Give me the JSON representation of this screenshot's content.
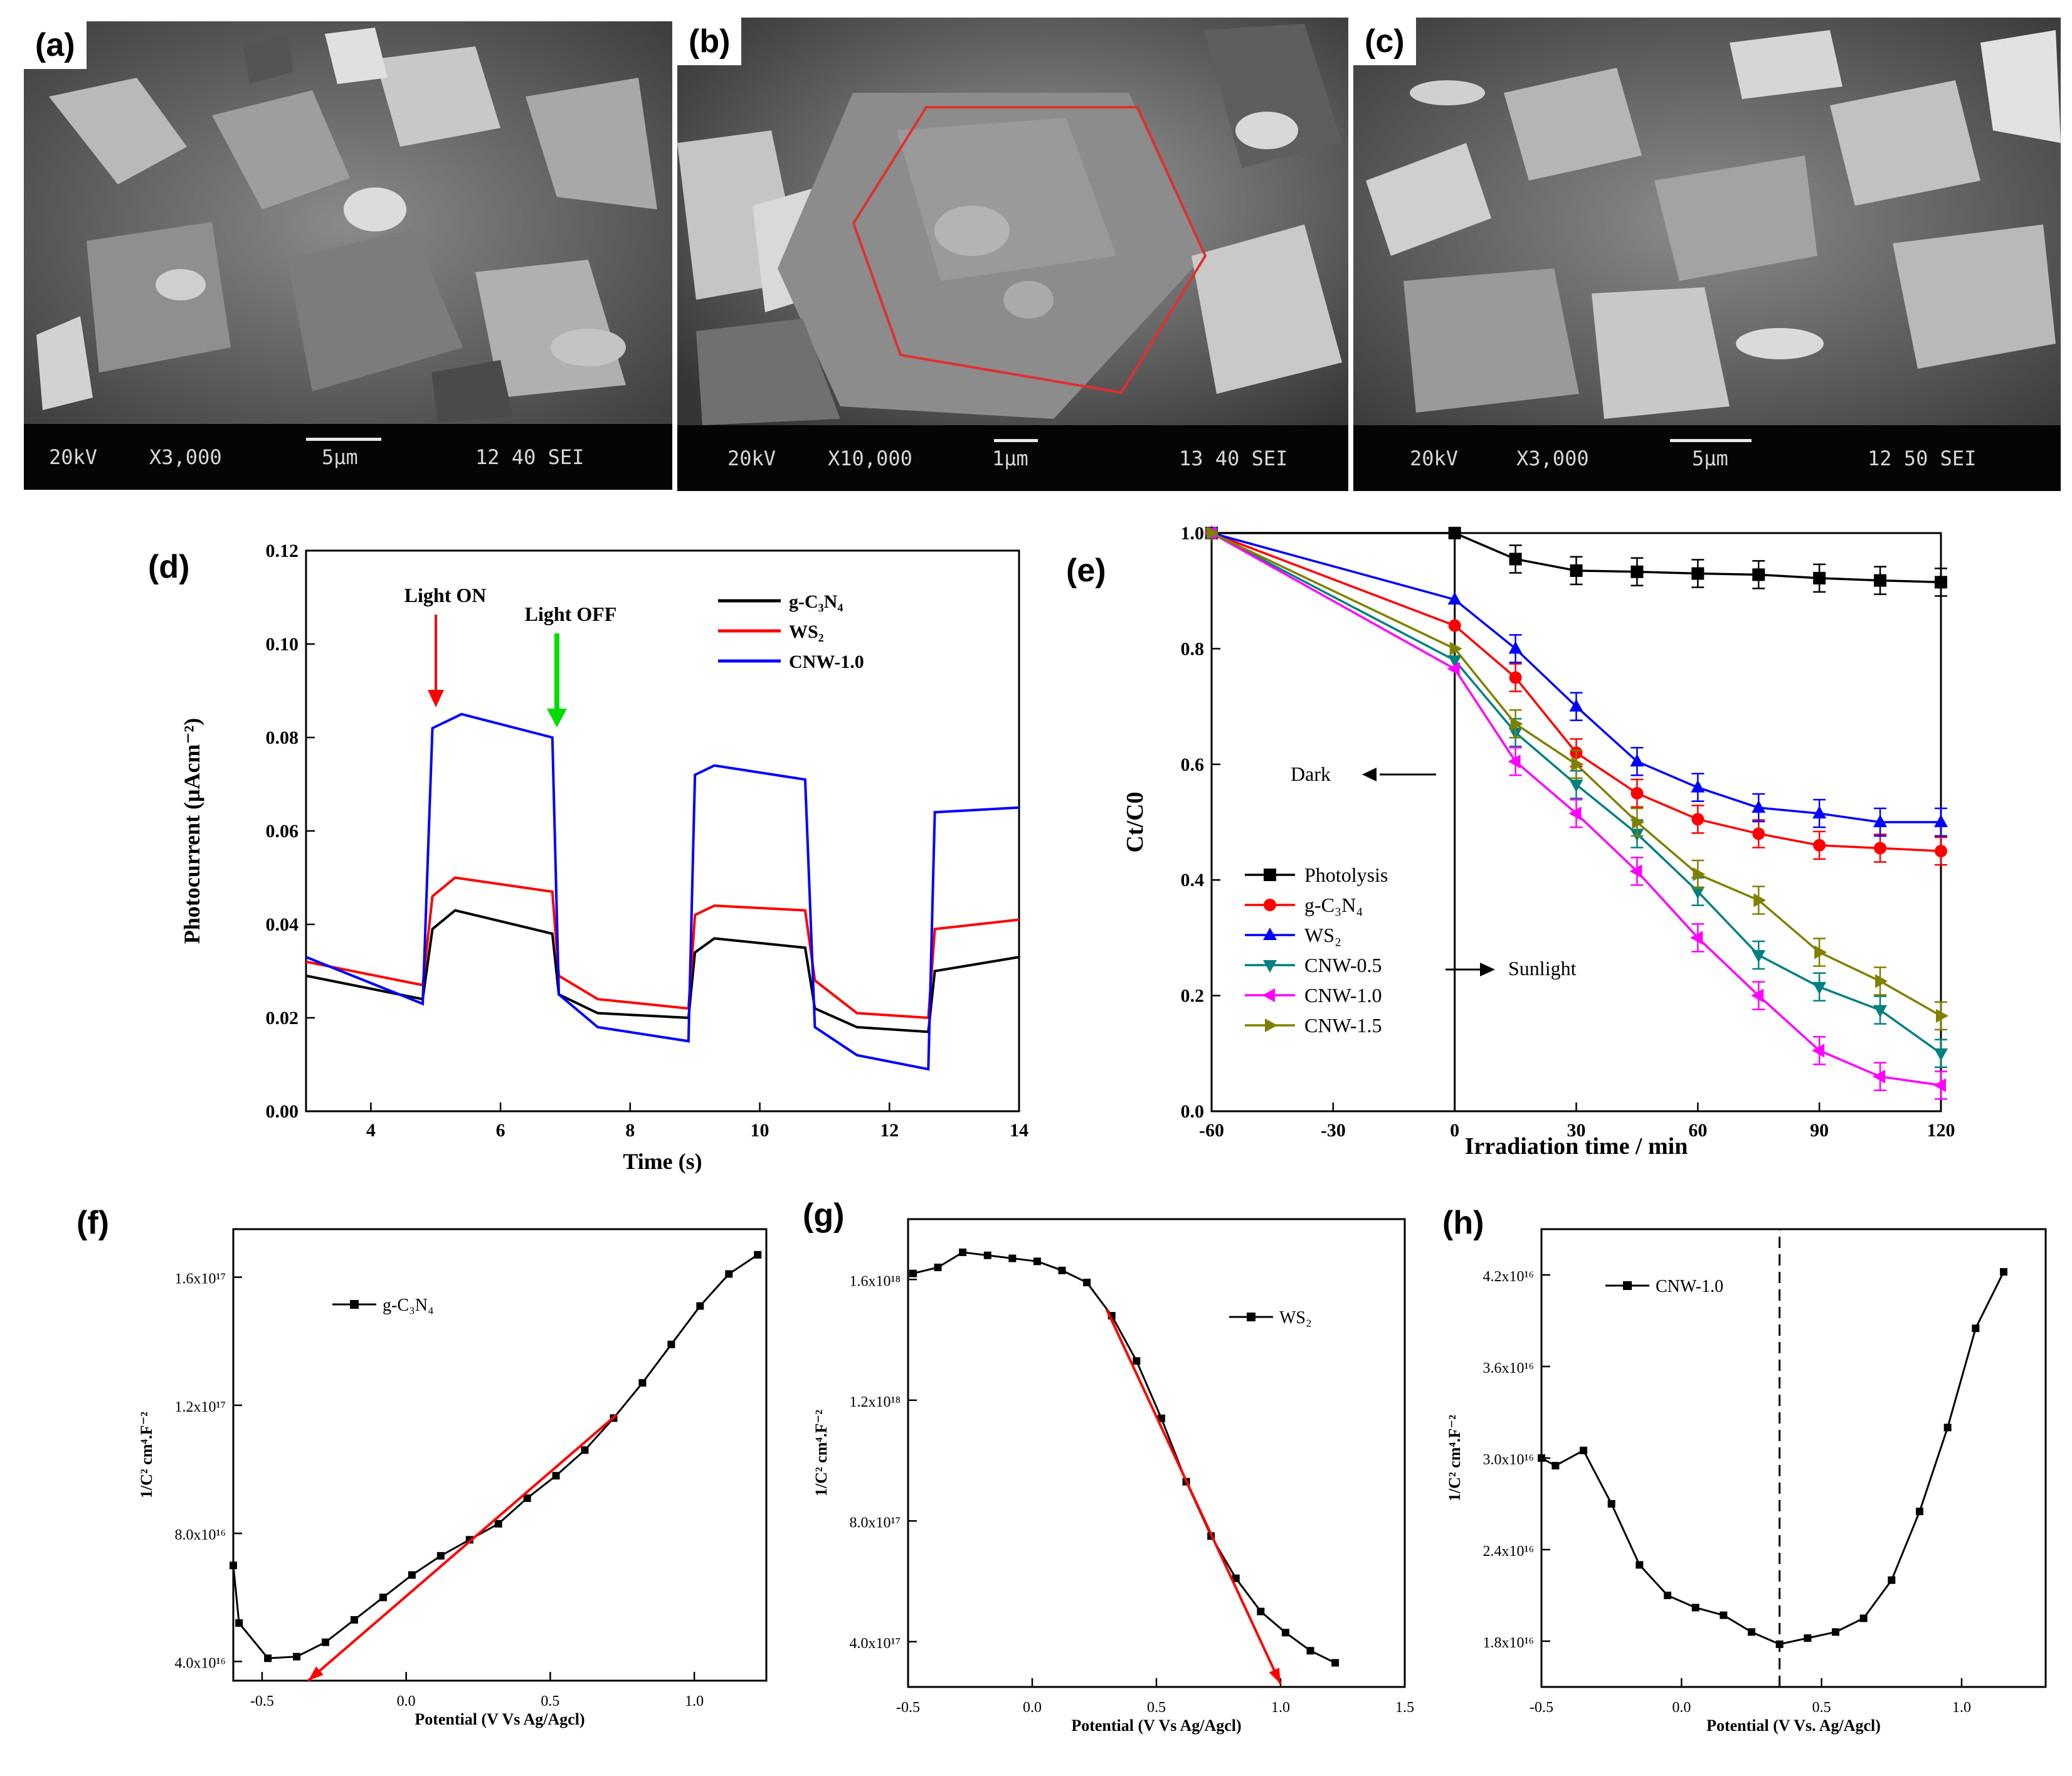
{
  "panels": {
    "a": {
      "label": "(a)",
      "info": {
        "kv": "20kV",
        "mag": "X3,000",
        "scale": "5μm",
        "code": "12 40 SEI"
      }
    },
    "b": {
      "label": "(b)",
      "info": {
        "kv": "20kV",
        "mag": "X10,000",
        "scale": "1μm",
        "code": "13 40 SEI"
      }
    },
    "c": {
      "label": "(c)",
      "info": {
        "kv": "20kV",
        "mag": "X3,000",
        "scale": "5μm",
        "code": "12 50 SEI"
      }
    },
    "d": {
      "label": "(d)"
    },
    "e": {
      "label": "(e)"
    },
    "f": {
      "label": "(f)"
    },
    "g": {
      "label": "(g)"
    },
    "h": {
      "label": "(h)"
    }
  },
  "chart_data": [
    {
      "id": "d",
      "type": "line",
      "title": "",
      "xlabel": "Time (s)",
      "ylabel": "Photocurrent (μAcm⁻²)",
      "xlim": [
        3,
        14
      ],
      "ylim": [
        0,
        0.12
      ],
      "xticks": [
        "4",
        "6",
        "8",
        "10",
        "12",
        "14"
      ],
      "yticks": [
        "0.00",
        "0.02",
        "0.04",
        "0.06",
        "0.08",
        "0.10",
        "0.12"
      ],
      "annotations": [
        "Light ON",
        "Light OFF"
      ],
      "legend": "top-right",
      "series": [
        {
          "name": "g-C₃N₄",
          "color": "#000000",
          "x": [
            3,
            4.8,
            4.95,
            5.3,
            6.8,
            6.9,
            7.5,
            8.9,
            9,
            9.3,
            10.7,
            10.85,
            11.5,
            12.6,
            12.7,
            14
          ],
          "y": [
            0.029,
            0.024,
            0.039,
            0.043,
            0.038,
            0.025,
            0.021,
            0.02,
            0.034,
            0.037,
            0.035,
            0.022,
            0.018,
            0.017,
            0.03,
            0.033
          ]
        },
        {
          "name": "WS₂",
          "color": "#ff0000",
          "x": [
            3,
            4.8,
            4.95,
            5.3,
            6.8,
            6.9,
            7.5,
            8.9,
            9,
            9.3,
            10.7,
            10.85,
            11.5,
            12.6,
            12.7,
            14
          ],
          "y": [
            0.032,
            0.027,
            0.046,
            0.05,
            0.047,
            0.029,
            0.024,
            0.022,
            0.042,
            0.044,
            0.043,
            0.028,
            0.021,
            0.02,
            0.039,
            0.041
          ]
        },
        {
          "name": "CNW-1.0",
          "color": "#0000ff",
          "x": [
            3,
            4.8,
            4.95,
            5.4,
            6.8,
            6.9,
            7.5,
            8.9,
            9,
            9.3,
            10.7,
            10.85,
            11.5,
            12.6,
            12.7,
            14
          ],
          "y": [
            0.033,
            0.023,
            0.082,
            0.085,
            0.08,
            0.025,
            0.018,
            0.015,
            0.072,
            0.074,
            0.071,
            0.018,
            0.012,
            0.009,
            0.064,
            0.065
          ]
        }
      ]
    },
    {
      "id": "e",
      "type": "line",
      "xlabel": "Irradiation time / min",
      "ylabel": "Ct/C0",
      "xlim": [
        -60,
        120
      ],
      "ylim": [
        0,
        1.0
      ],
      "xticks": [
        "-60",
        "-30",
        "0",
        "30",
        "60",
        "90",
        "120"
      ],
      "yticks": [
        "0.0",
        "0.2",
        "0.4",
        "0.6",
        "0.8",
        "1.0"
      ],
      "annotations": [
        "Dark",
        "Sunlight"
      ],
      "legend": "bottom-left",
      "series": [
        {
          "name": "Photolysis",
          "color": "#000000",
          "x": [
            -60,
            0,
            15,
            30,
            45,
            60,
            75,
            90,
            105,
            120
          ],
          "y": [
            1.0,
            1.0,
            0.955,
            0.935,
            0.933,
            0.93,
            0.928,
            0.922,
            0.918,
            0.915
          ]
        },
        {
          "name": "g-C₃N₄",
          "color": "#ff0000",
          "x": [
            -60,
            0,
            15,
            30,
            45,
            60,
            75,
            90,
            105,
            120
          ],
          "y": [
            1.0,
            0.84,
            0.75,
            0.62,
            0.55,
            0.505,
            0.48,
            0.46,
            0.455,
            0.45
          ]
        },
        {
          "name": "WS₂",
          "color": "#0000ff",
          "x": [
            -60,
            0,
            15,
            30,
            45,
            60,
            75,
            90,
            105,
            120
          ],
          "y": [
            1.0,
            0.885,
            0.8,
            0.7,
            0.605,
            0.56,
            0.525,
            0.515,
            0.5,
            0.5
          ]
        },
        {
          "name": "CNW-0.5",
          "color": "#008080",
          "x": [
            -60,
            0,
            15,
            30,
            45,
            60,
            75,
            90,
            105,
            120
          ],
          "y": [
            1.0,
            0.78,
            0.655,
            0.565,
            0.48,
            0.38,
            0.27,
            0.215,
            0.175,
            0.1
          ]
        },
        {
          "name": "CNW-1.0",
          "color": "#ff00ff",
          "x": [
            -60,
            0,
            15,
            30,
            45,
            60,
            75,
            90,
            105,
            120
          ],
          "y": [
            1.0,
            0.765,
            0.605,
            0.515,
            0.415,
            0.3,
            0.2,
            0.105,
            0.06,
            0.045
          ]
        },
        {
          "name": "CNW-1.5",
          "color": "#808000",
          "x": [
            -60,
            0,
            15,
            30,
            45,
            60,
            75,
            90,
            105,
            120
          ],
          "y": [
            1.0,
            0.8,
            0.67,
            0.6,
            0.5,
            0.41,
            0.365,
            0.275,
            0.225,
            0.165
          ]
        }
      ]
    },
    {
      "id": "f",
      "type": "line",
      "xlabel": "Potential (V Vs Ag/Agcl)",
      "ylabel": "1/C² cm⁴.F⁻²",
      "xlim": [
        -0.6,
        1.25
      ],
      "ylim": [
        3.4e+16,
        1.75e+17
      ],
      "xticks": [
        "-0.5",
        "0.0",
        "0.5",
        "1.0"
      ],
      "yticks": [
        "4.0x10¹⁶",
        "8.0x10¹⁶",
        "1.2x10¹⁷",
        "1.6x10¹⁷"
      ],
      "legend": "top-left",
      "series": [
        {
          "name": "g-C₃N₄",
          "color": "#000000",
          "x": [
            -0.6,
            -0.58,
            -0.48,
            -0.38,
            -0.28,
            -0.18,
            -0.08,
            0.02,
            0.12,
            0.22,
            0.32,
            0.42,
            0.52,
            0.62,
            0.72,
            0.82,
            0.92,
            1.02,
            1.12,
            1.22
          ],
          "y": [
            7e+16,
            5.2e+16,
            4.1e+16,
            4.15e+16,
            4.6e+16,
            5.3e+16,
            6e+16,
            6.7e+16,
            7.3e+16,
            7.8e+16,
            8.3e+16,
            9.1e+16,
            9.8e+16,
            1.06e+17,
            1.16e+17,
            1.27e+17,
            1.39e+17,
            1.51e+17,
            1.61e+17,
            1.67e+17
          ]
        },
        {
          "name": "fit",
          "color": "#ff0000",
          "x": [
            0.73,
            -0.34
          ],
          "y": [
            1.17e+17,
            3.4e+16
          ]
        }
      ]
    },
    {
      "id": "g",
      "type": "line",
      "xlabel": "Potential (V Vs Ag/Agcl)",
      "ylabel": "1/C² cm⁴.F⁻²",
      "xlim": [
        -0.5,
        1.5
      ],
      "ylim": [
        2.5e+17,
        1.8e+18
      ],
      "xticks": [
        "-0.5",
        "0.0",
        "0.5",
        "1.0",
        "1.5"
      ],
      "yticks": [
        "4.0x10¹⁷",
        "8.0x10¹⁷",
        "1.2x10¹⁸",
        "1.6x10¹⁸"
      ],
      "legend": "top-right",
      "series": [
        {
          "name": "WS₂",
          "color": "#000000",
          "x": [
            -0.48,
            -0.38,
            -0.28,
            -0.18,
            -0.08,
            0.02,
            0.12,
            0.22,
            0.32,
            0.42,
            0.52,
            0.62,
            0.72,
            0.82,
            0.92,
            1.02,
            1.12,
            1.22
          ],
          "y": [
            1.62e+18,
            1.64e+18,
            1.69e+18,
            1.68e+18,
            1.67e+18,
            1.66e+18,
            1.63e+18,
            1.59e+18,
            1.48e+18,
            1.33e+18,
            1.14e+18,
            9.3e+17,
            7.5e+17,
            6.1e+17,
            5e+17,
            4.3e+17,
            3.7e+17,
            3.3e+17
          ]
        },
        {
          "name": "fit",
          "color": "#ff0000",
          "x": [
            0.3,
            1.0
          ],
          "y": [
            1.5e+18,
            2.6e+17
          ]
        }
      ]
    },
    {
      "id": "h",
      "type": "line",
      "xlabel": "Potential (V Vs. Ag/Agcl)",
      "ylabel": "1/C² cm⁴.F⁻²",
      "xlim": [
        -0.5,
        1.3
      ],
      "ylim": [
        1.5e+16,
        4.5e+16
      ],
      "xticks": [
        "-0.5",
        "0.0",
        "0.5",
        "1.0"
      ],
      "yticks": [
        "1.8x10¹⁶",
        "2.4x10¹⁶",
        "3.0x10¹⁶",
        "3.6x10¹⁶",
        "4.2x10¹⁶"
      ],
      "legend": "top-left",
      "series": [
        {
          "name": "CNW-1.0",
          "color": "#000000",
          "x": [
            -0.5,
            -0.45,
            -0.35,
            -0.25,
            -0.15,
            -0.05,
            0.05,
            0.15,
            0.25,
            0.35,
            0.45,
            0.55,
            0.65,
            0.75,
            0.85,
            0.95,
            1.05,
            1.15
          ],
          "y": [
            3e+16,
            2.95e+16,
            3.05e+16,
            2.7e+16,
            2.3e+16,
            2.1e+16,
            2.02e+16,
            1.97e+16,
            1.86e+16,
            1.78e+16,
            1.82e+16,
            1.86e+16,
            1.95e+16,
            2.2e+16,
            2.65e+16,
            3.2e+16,
            3.85e+16,
            4.22e+16
          ]
        },
        {
          "name": "marker",
          "color": "#000000",
          "x": [
            0.35,
            0.35
          ],
          "y": [
            1.5e+16,
            4.5e+16
          ]
        }
      ]
    }
  ]
}
